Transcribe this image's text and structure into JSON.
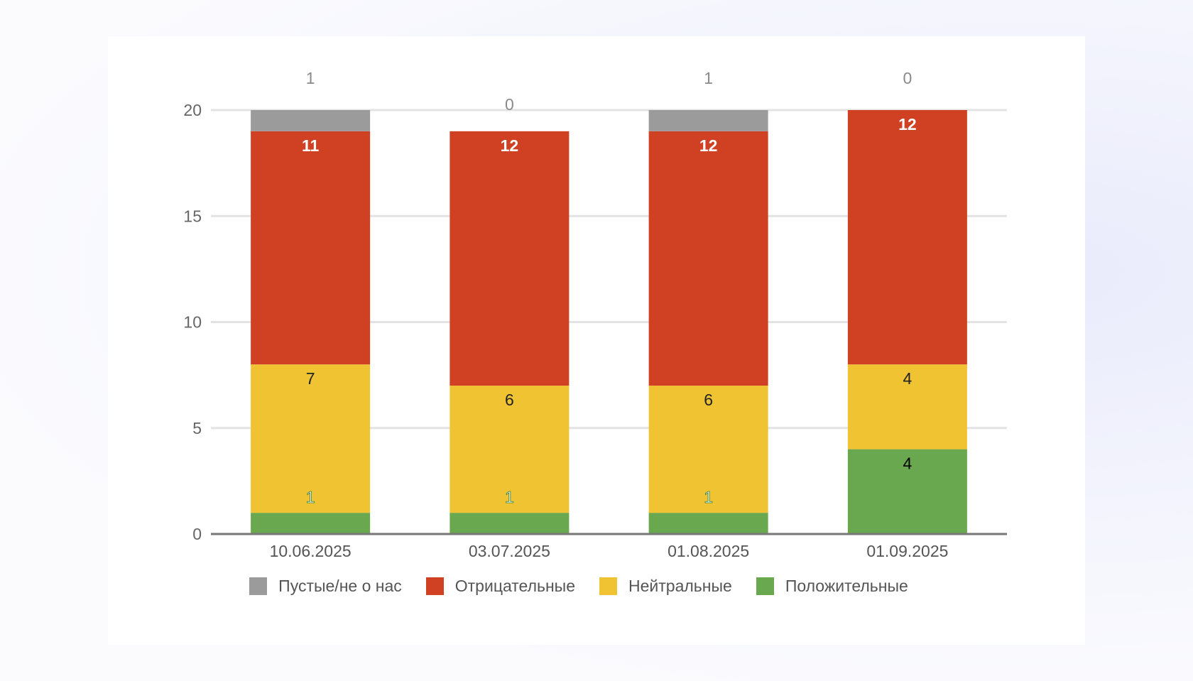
{
  "chart_data": {
    "type": "bar",
    "stacked": true,
    "title": "",
    "xlabel": "",
    "ylabel": "",
    "ylim": [
      0,
      20
    ],
    "yticks": [
      0,
      5,
      10,
      15,
      20
    ],
    "categories": [
      "10.06.2025",
      "03.07.2025",
      "01.08.2025",
      "01.09.2025"
    ],
    "series": [
      {
        "name": "Положительные",
        "color": "#6aa84f",
        "values": [
          1,
          1,
          1,
          4
        ],
        "labels": [
          "1",
          "1",
          "1",
          "4"
        ],
        "label_color": "#000000"
      },
      {
        "name": "Нейтральные",
        "color": "#f0c332",
        "values": [
          7,
          6,
          6,
          4
        ],
        "labels": [
          "7",
          "6",
          "6",
          "4"
        ],
        "label_color": "#222222"
      },
      {
        "name": "Отрицательные",
        "color": "#d04124",
        "values": [
          11,
          12,
          12,
          12
        ],
        "labels": [
          "11",
          "12",
          "12",
          "12"
        ],
        "label_color": "#ffffff"
      },
      {
        "name": "Пустые/не о нас",
        "color": "#9b9b9b",
        "values": [
          1,
          0,
          1,
          0
        ],
        "labels": [
          "1",
          "0",
          "1",
          "0"
        ],
        "label_color": "#8a8a8a"
      }
    ],
    "legend": "bottom",
    "grid": true
  },
  "legend": {
    "items": [
      {
        "label": "Пустые/не о нас",
        "color": "#9b9b9b"
      },
      {
        "label": "Отрицательные",
        "color": "#d04124"
      },
      {
        "label": "Нейтральные",
        "color": "#f0c332"
      },
      {
        "label": "Положительные",
        "color": "#6aa84f"
      }
    ]
  }
}
